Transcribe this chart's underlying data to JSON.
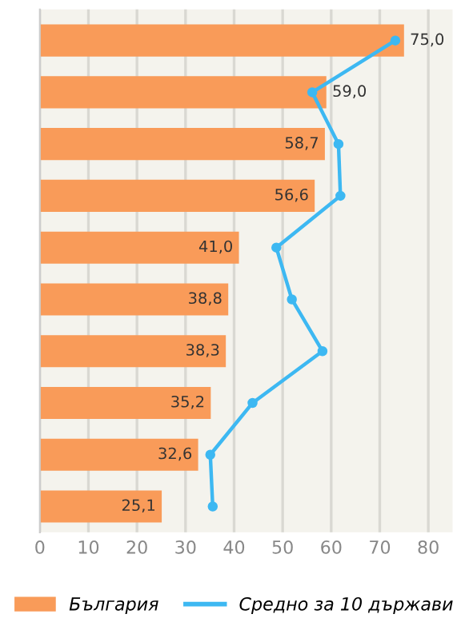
{
  "chart_data": {
    "type": "bar",
    "orientation": "horizontal",
    "categories": [
      null,
      null,
      null,
      null,
      null,
      null,
      null,
      null,
      null,
      null
    ],
    "series": [
      {
        "name": "България",
        "color": "#f99b59",
        "values": [
          75.0,
          59.0,
          58.7,
          56.6,
          41.0,
          38.8,
          38.3,
          35.2,
          32.6,
          25.1
        ],
        "value_labels": [
          "75,0",
          "59,0",
          "58,7",
          "56,6",
          "41,0",
          "38,8",
          "38,3",
          "35,2",
          "32,6",
          "25,1"
        ]
      },
      {
        "name": "Средно за 10 държави",
        "type": "line",
        "color": "#3db8f2",
        "marker": "circle",
        "values": [
          73.2,
          56.1,
          61.5,
          61.9,
          48.7,
          51.9,
          58.2,
          43.8,
          35.1,
          35.6
        ]
      }
    ],
    "xlim": [
      0,
      85
    ],
    "xticks": [
      0,
      10,
      20,
      30,
      40,
      50,
      60,
      70,
      80
    ],
    "grid": "x",
    "legend": "bottom"
  }
}
